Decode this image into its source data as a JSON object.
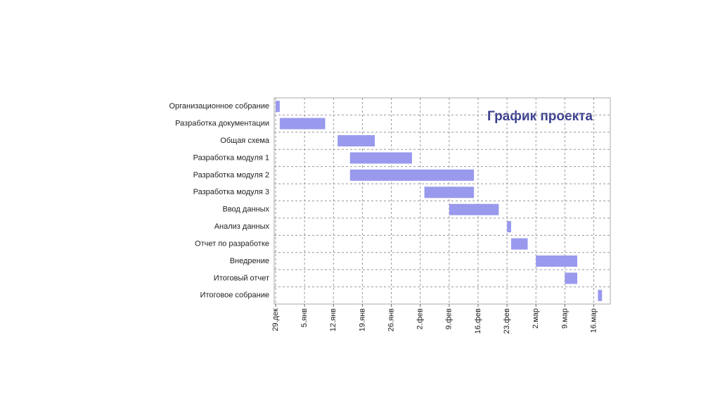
{
  "chart_data": {
    "type": "gantt",
    "title": "График проекта",
    "categories": [
      "Организационное собрание",
      "Разработка документации",
      "Общая схема",
      "Разработка модуля 1",
      "Разработка модуля 2",
      "Разработка модуля 3",
      "Ввод данных",
      "Анализ данных",
      "Отчет по разработке",
      "Внедрение",
      "Итоговый отчет",
      "Итоговое собрание"
    ],
    "start": [
      0,
      1,
      15,
      18,
      18,
      36,
      42,
      56,
      57,
      63,
      70,
      78
    ],
    "end": [
      1,
      12,
      24,
      33,
      48,
      48,
      54,
      57,
      61,
      73,
      73,
      79
    ],
    "color": "#9999ee",
    "xlim": [
      0,
      81
    ],
    "xticks": [
      {
        "value": 0,
        "label": "29.дек"
      },
      {
        "value": 7,
        "label": "5.янв"
      },
      {
        "value": 14,
        "label": "12.янв"
      },
      {
        "value": 21,
        "label": "19.янв"
      },
      {
        "value": 28,
        "label": "26.янв"
      },
      {
        "value": 35,
        "label": "2.фев"
      },
      {
        "value": 42,
        "label": "9.фев"
      },
      {
        "value": 49,
        "label": "16.фев"
      },
      {
        "value": 56,
        "label": "23.фев"
      },
      {
        "value": 63,
        "label": "2.мар"
      },
      {
        "value": 70,
        "label": "9.мар"
      },
      {
        "value": 77,
        "label": "16.мар"
      }
    ],
    "grid": true
  }
}
